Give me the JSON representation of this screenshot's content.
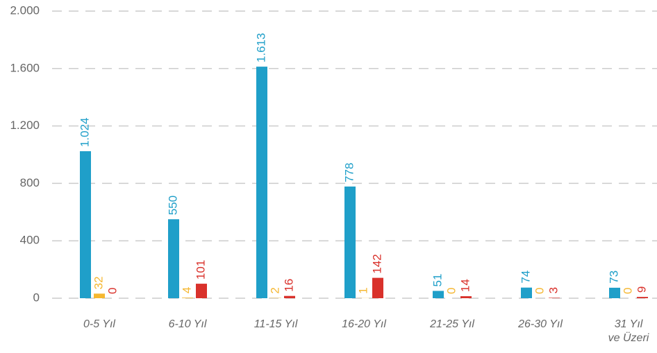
{
  "chart_data": {
    "type": "bar",
    "categories": [
      "0-5 Yıl",
      "6-10 Yıl",
      "11-15 Yıl",
      "16-20 Yıl",
      "21-25 Yıl",
      "26-30 Yıl",
      "31 Yıl\nve Üzeri"
    ],
    "series": [
      {
        "color": "#1f9fc9",
        "values": [
          1024,
          550,
          1613,
          778,
          51,
          74,
          73
        ],
        "value_labels": [
          "1.024",
          "550",
          "1.613",
          "778",
          "51",
          "74",
          "73"
        ]
      },
      {
        "color": "#f5b731",
        "values": [
          32,
          4,
          2,
          1,
          0,
          0,
          0
        ]
      },
      {
        "color": "#d9312b",
        "values": [
          0,
          101,
          16,
          142,
          14,
          3,
          9
        ]
      }
    ],
    "ylim": [
      0,
      2000
    ],
    "yticks": [
      0,
      400,
      800,
      {
        "value": 1200,
        "label": "1.200"
      },
      {
        "value": 1600,
        "label": "1.600"
      },
      {
        "value": 2000,
        "label": "2.000"
      }
    ],
    "grid": true
  }
}
